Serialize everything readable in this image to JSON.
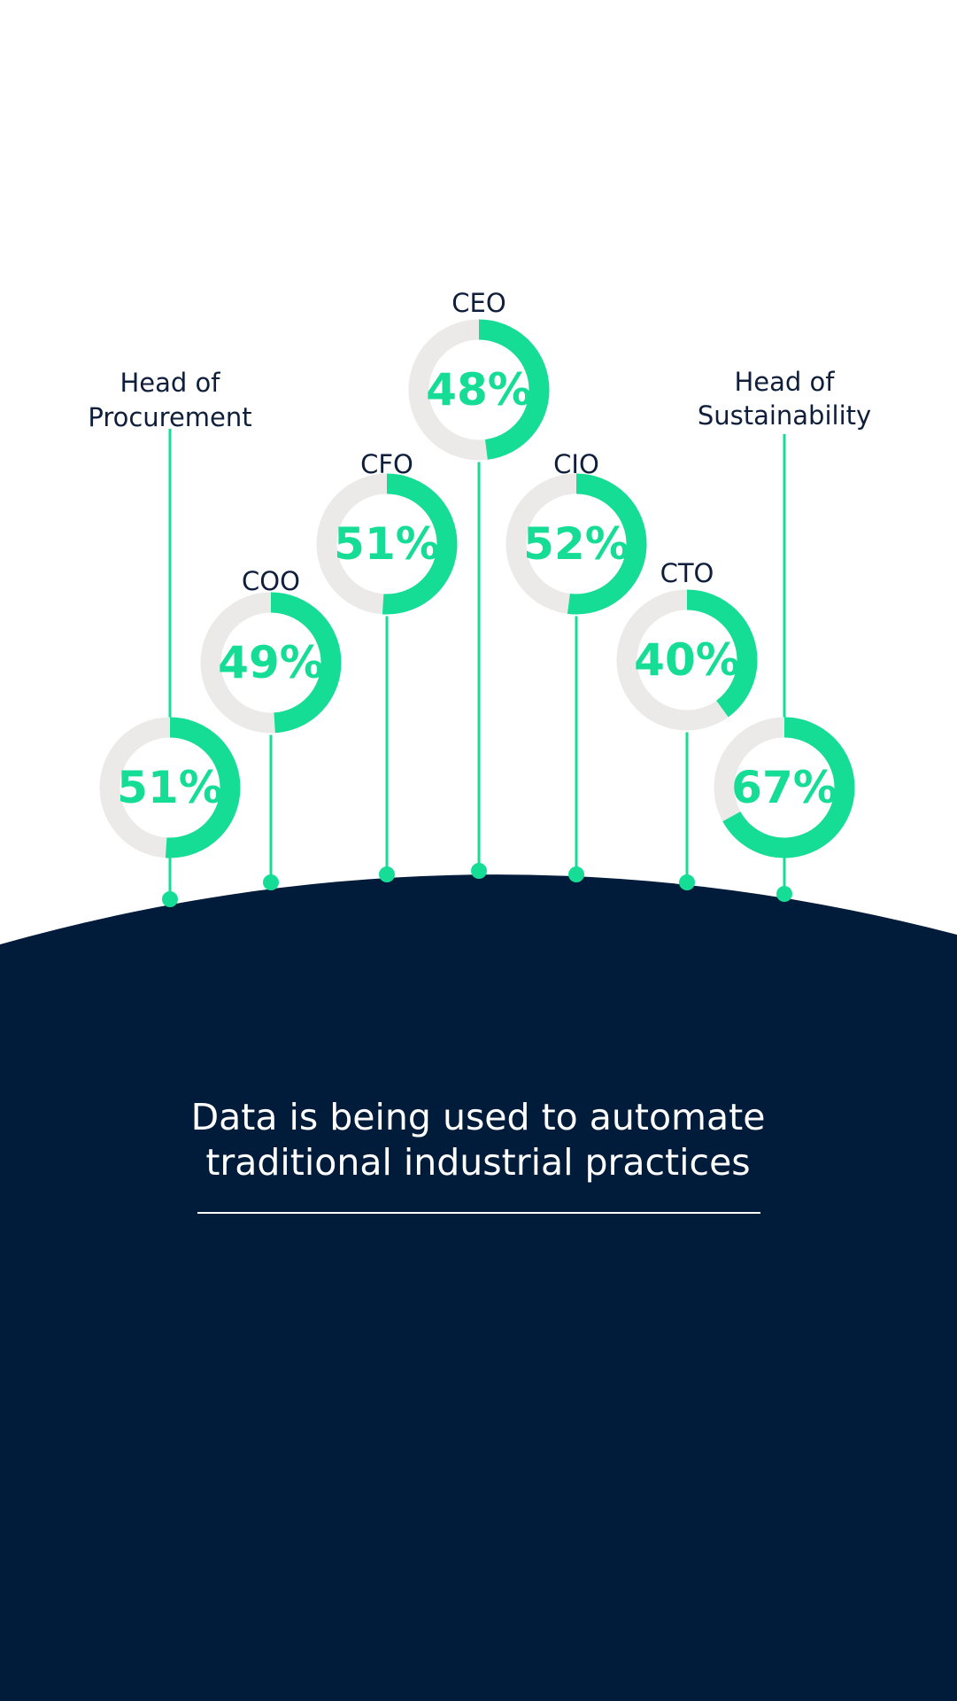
{
  "chart_data": {
    "type": "donut",
    "title": "",
    "categories": [
      "Head of Procurement",
      "COO",
      "CFO",
      "CEO",
      "CIO",
      "CTO",
      "Head of Sustainability"
    ],
    "values": [
      51,
      49,
      51,
      48,
      52,
      40,
      67
    ],
    "value_labels": [
      "51%",
      "49%",
      "51%",
      "48%",
      "52%",
      "40%",
      "67%"
    ],
    "label_lines": [
      [
        "Head of",
        "Procurement"
      ],
      [
        "COO"
      ],
      [
        "CFO"
      ],
      [
        "CEO"
      ],
      [
        "CIO"
      ],
      [
        "CTO"
      ],
      [
        "Head of",
        "Sustainability"
      ]
    ],
    "legend": "none",
    "grid": false
  },
  "colors": {
    "accent": "#16dd96",
    "track": "#ebeae8",
    "navy": "#011c3b",
    "label": "#0f1e3b",
    "background": "#ffffff"
  },
  "caption": {
    "line1": "Data is being used to automate",
    "line2": "traditional industrial practices"
  }
}
